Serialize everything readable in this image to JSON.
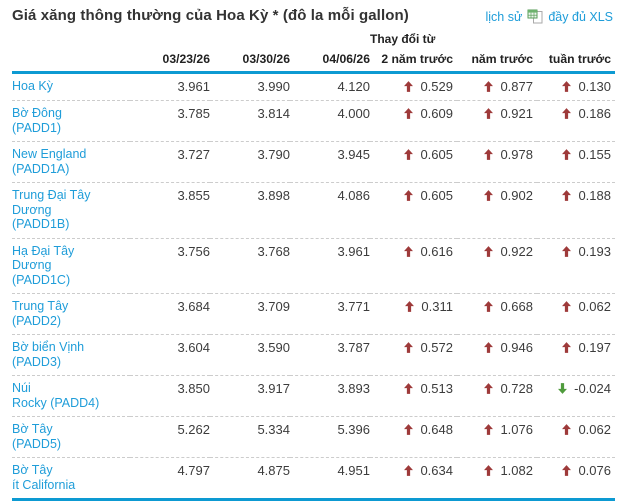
{
  "title": "Giá xăng thông thường của Hoa Kỳ * (đô la mỗi gallon)",
  "links": {
    "history": "lịch sử",
    "full_xls": "đầy đủ XLS"
  },
  "colors": {
    "accent_blue": "#0d9ad2",
    "link_blue": "#1f9dd9",
    "up_red": "#9e3a3a",
    "down_green": "#4f9b3c",
    "text_dark": "#3c3c3c"
  },
  "table": {
    "change_from_label": "Thay đổi từ",
    "date_columns": [
      "03/23/26",
      "03/30/26",
      "04/06/26"
    ],
    "change_columns": [
      "2 năm trước",
      "năm trước",
      "tuần trước"
    ],
    "rows": [
      {
        "label": "Hoa Kỳ",
        "prices": [
          "3.961",
          "3.990",
          "4.120"
        ],
        "changes": [
          {
            "dir": "up",
            "value": "0.529"
          },
          {
            "dir": "up",
            "value": "0.877"
          },
          {
            "dir": "up",
            "value": "0.130"
          }
        ]
      },
      {
        "label": "Bờ Đông\n(PADD1)",
        "prices": [
          "3.785",
          "3.814",
          "4.000"
        ],
        "changes": [
          {
            "dir": "up",
            "value": "0.609"
          },
          {
            "dir": "up",
            "value": "0.921"
          },
          {
            "dir": "up",
            "value": "0.186"
          }
        ]
      },
      {
        "label": "New England\n(PADD1A)",
        "prices": [
          "3.727",
          "3.790",
          "3.945"
        ],
        "changes": [
          {
            "dir": "up",
            "value": "0.605"
          },
          {
            "dir": "up",
            "value": "0.978"
          },
          {
            "dir": "up",
            "value": "0.155"
          }
        ]
      },
      {
        "label": "Trung Đại Tây\nDương\n(PADD1B)",
        "prices": [
          "3.855",
          "3.898",
          "4.086"
        ],
        "changes": [
          {
            "dir": "up",
            "value": "0.605"
          },
          {
            "dir": "up",
            "value": "0.902"
          },
          {
            "dir": "up",
            "value": "0.188"
          }
        ]
      },
      {
        "label": "Hạ Đại Tây\nDương\n(PADD1C)",
        "prices": [
          "3.756",
          "3.768",
          "3.961"
        ],
        "changes": [
          {
            "dir": "up",
            "value": "0.616"
          },
          {
            "dir": "up",
            "value": "0.922"
          },
          {
            "dir": "up",
            "value": "0.193"
          }
        ]
      },
      {
        "label": "Trung Tây\n(PADD2)",
        "prices": [
          "3.684",
          "3.709",
          "3.771"
        ],
        "changes": [
          {
            "dir": "up",
            "value": "0.311"
          },
          {
            "dir": "up",
            "value": "0.668"
          },
          {
            "dir": "up",
            "value": "0.062"
          }
        ]
      },
      {
        "label": "Bờ biển Vịnh\n(PADD3)",
        "prices": [
          "3.604",
          "3.590",
          "3.787"
        ],
        "changes": [
          {
            "dir": "up",
            "value": "0.572"
          },
          {
            "dir": "up",
            "value": "0.946"
          },
          {
            "dir": "up",
            "value": "0.197"
          }
        ]
      },
      {
        "label": "Núi\nRocky (PADD4)",
        "prices": [
          "3.850",
          "3.917",
          "3.893"
        ],
        "changes": [
          {
            "dir": "up",
            "value": "0.513"
          },
          {
            "dir": "up",
            "value": "0.728"
          },
          {
            "dir": "down",
            "value": "-0.024"
          }
        ]
      },
      {
        "label": "Bờ Tây\n(PADD5)",
        "prices": [
          "5.262",
          "5.334",
          "5.396"
        ],
        "changes": [
          {
            "dir": "up",
            "value": "0.648"
          },
          {
            "dir": "up",
            "value": "1.076"
          },
          {
            "dir": "up",
            "value": "0.062"
          }
        ]
      },
      {
        "label": "Bờ Tây\nít California",
        "prices": [
          "4.797",
          "4.875",
          "4.951"
        ],
        "changes": [
          {
            "dir": "up",
            "value": "0.634"
          },
          {
            "dir": "up",
            "value": "1.082"
          },
          {
            "dir": "up",
            "value": "0.076"
          }
        ]
      }
    ]
  }
}
